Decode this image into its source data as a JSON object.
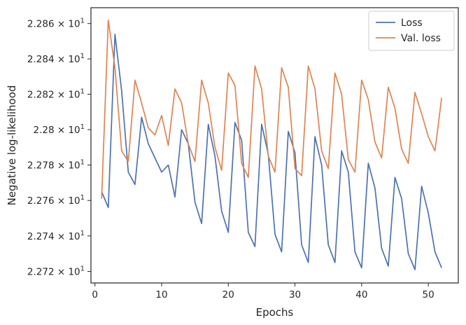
{
  "chart_data": {
    "type": "line",
    "xlabel": "Epochs",
    "ylabel": "Negative log-likelihood",
    "xlim": [
      -0.6,
      54.5
    ],
    "ylim": [
      22.7135,
      22.869
    ],
    "y_scale": "log",
    "grid": false,
    "legend_position": "top-right",
    "x_ticks": [
      0,
      10,
      20,
      30,
      40,
      50
    ],
    "x_tick_labels": [
      "0",
      "10",
      "20",
      "30",
      "40",
      "50"
    ],
    "y_ticks": [
      22.72,
      22.74,
      22.76,
      22.78,
      22.8,
      22.82,
      22.84,
      22.86
    ],
    "y_tick_labels": [
      {
        "mantissa": "2.272",
        "exponent": "1"
      },
      {
        "mantissa": "2.274",
        "exponent": "1"
      },
      {
        "mantissa": "2.276",
        "exponent": "1"
      },
      {
        "mantissa": "2.278",
        "exponent": "1"
      },
      {
        "mantissa": "2.28",
        "exponent": "1"
      },
      {
        "mantissa": "2.282",
        "exponent": "1"
      },
      {
        "mantissa": "2.284",
        "exponent": "1"
      },
      {
        "mantissa": "2.286",
        "exponent": "1"
      }
    ],
    "x": [
      1,
      2,
      3,
      4,
      5,
      6,
      7,
      8,
      9,
      10,
      11,
      12,
      13,
      14,
      15,
      16,
      17,
      18,
      19,
      20,
      21,
      22,
      23,
      24,
      25,
      26,
      27,
      28,
      29,
      30,
      31,
      32,
      33,
      34,
      35,
      36,
      37,
      38,
      39,
      40,
      41,
      42,
      43,
      44,
      45,
      46,
      47,
      48,
      49,
      50,
      51,
      52
    ],
    "series": [
      {
        "name": "Loss",
        "color": "#4c72b0",
        "values": [
          22.765,
          22.756,
          22.854,
          22.822,
          22.776,
          22.769,
          22.807,
          22.792,
          22.784,
          22.776,
          22.78,
          22.762,
          22.8,
          22.792,
          22.759,
          22.747,
          22.803,
          22.785,
          22.754,
          22.742,
          22.804,
          22.794,
          22.742,
          22.734,
          22.803,
          22.786,
          22.741,
          22.731,
          22.799,
          22.787,
          22.735,
          22.725,
          22.796,
          22.78,
          22.735,
          22.725,
          22.788,
          22.776,
          22.731,
          22.722,
          22.781,
          22.767,
          22.733,
          22.723,
          22.773,
          22.761,
          22.73,
          22.721,
          22.768,
          22.753,
          22.731,
          22.722
        ]
      },
      {
        "name": "Val. loss",
        "color": "#dd8452",
        "values": [
          22.761,
          22.862,
          22.835,
          22.788,
          22.782,
          22.828,
          22.815,
          22.801,
          22.797,
          22.808,
          22.791,
          22.823,
          22.815,
          22.792,
          22.782,
          22.828,
          22.815,
          22.79,
          22.777,
          22.832,
          22.825,
          22.781,
          22.773,
          22.836,
          22.823,
          22.785,
          22.776,
          22.835,
          22.824,
          22.778,
          22.774,
          22.836,
          22.823,
          22.788,
          22.778,
          22.832,
          22.82,
          22.783,
          22.776,
          22.828,
          22.817,
          22.793,
          22.784,
          22.824,
          22.812,
          22.789,
          22.781,
          22.821,
          22.809,
          22.796,
          22.788,
          22.818
        ]
      }
    ]
  }
}
